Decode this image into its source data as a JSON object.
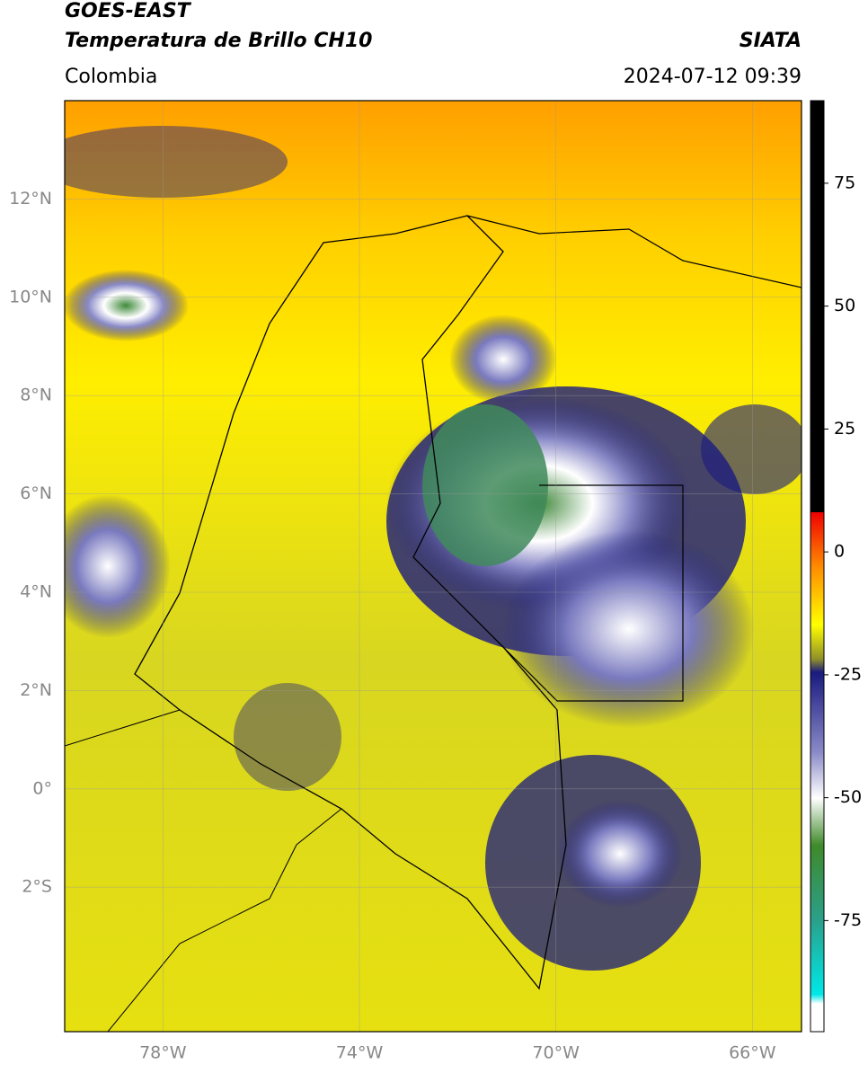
{
  "header": {
    "title": "GOES-EAST",
    "subtitle": "Temperatura de Brillo CH10",
    "source": "SIATA",
    "region": "Colombia",
    "datetime": "2024-07-12 09:39"
  },
  "map": {
    "xlim": [
      -80.0,
      -65.0
    ],
    "ylim": [
      -4.94,
      14.0
    ],
    "grid": true,
    "xticks": [
      {
        "value": -78,
        "label": "78°W"
      },
      {
        "value": -74,
        "label": "74°W"
      },
      {
        "value": -70,
        "label": "70°W"
      },
      {
        "value": -66,
        "label": "66°W"
      }
    ],
    "yticks": [
      {
        "value": 12,
        "label": "12°N"
      },
      {
        "value": 10,
        "label": "10°N"
      },
      {
        "value": 8,
        "label": "8°N"
      },
      {
        "value": 6,
        "label": "6°N"
      },
      {
        "value": 4,
        "label": "4°N"
      },
      {
        "value": 2,
        "label": "2°N"
      },
      {
        "value": 0,
        "label": "0°"
      },
      {
        "value": -2,
        "label": "2°S"
      }
    ]
  },
  "colorbar": {
    "lim": [
      -97.6,
      91.8
    ],
    "ticks": [
      75,
      50,
      25,
      0,
      -25,
      -50,
      -75
    ]
  }
}
